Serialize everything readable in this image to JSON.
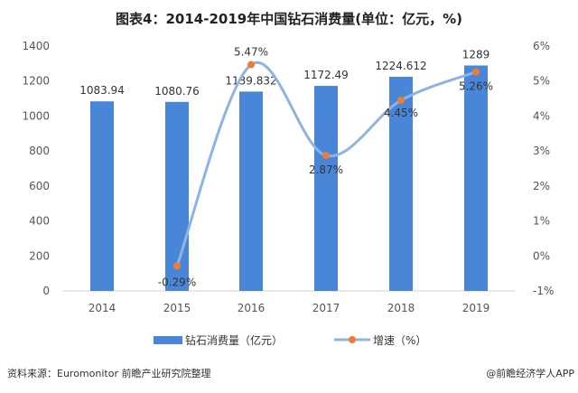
{
  "title": "图表4：2014-2019年中国钻石消费量(单位：亿元，%)",
  "source": "资料来源：Euromonitor  前瞻产业研究院整理",
  "credit": "@前瞻经济学人APP",
  "chart_data": {
    "type": "bar",
    "categories": [
      "2014",
      "2015",
      "2016",
      "2017",
      "2018",
      "2019"
    ],
    "series": [
      {
        "name": "钻石消费量（亿元）",
        "type": "bar",
        "axis": "left",
        "values": [
          1083.94,
          1080.76,
          1139.832,
          1172.49,
          1224.612,
          1289
        ],
        "labels": [
          "1083.94",
          "1080.76",
          "1139.832",
          "1172.49",
          "1224.612",
          "1289"
        ],
        "color": "#4a86d8"
      },
      {
        "name": "增速（%）",
        "type": "line",
        "axis": "right",
        "values": [
          null,
          -0.29,
          5.47,
          2.87,
          4.45,
          5.26
        ],
        "labels": [
          "",
          "-0.29%",
          "5.47%",
          "2.87%",
          "4.45%",
          "5.26%"
        ],
        "color": "#8db4e2",
        "marker_color": "#ed7d31"
      }
    ],
    "ylim_left": [
      0,
      1400
    ],
    "yticks_left": [
      "0",
      "200",
      "400",
      "600",
      "800",
      "1000",
      "1200",
      "1400"
    ],
    "ylim_right": [
      -1,
      6
    ],
    "yticks_right": [
      "-1%",
      "0%",
      "1%",
      "2%",
      "3%",
      "4%",
      "5%",
      "6%"
    ],
    "grid": false,
    "legend": "bottom"
  }
}
